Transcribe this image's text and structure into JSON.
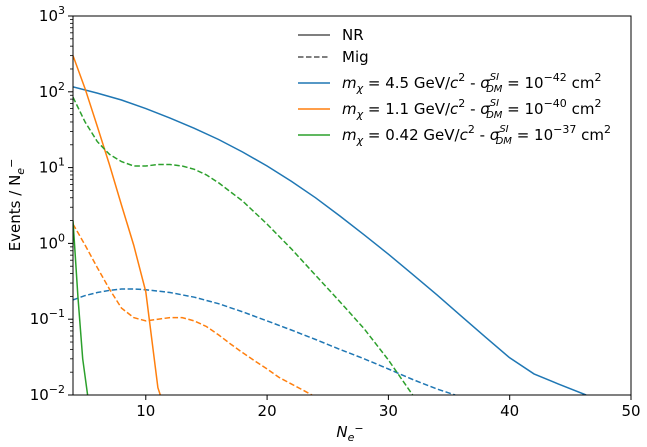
{
  "chart_data": {
    "type": "line",
    "xlabel_main": "N",
    "xlabel_sub": "e",
    "xlabel_sup": "−",
    "ylabel_main": "Events / N",
    "ylabel_sub": "e",
    "ylabel_sup": "−",
    "xlim": [
      4,
      50
    ],
    "ylim": [
      0.01,
      1000
    ],
    "yscale": "log",
    "x_ticks": [
      {
        "value": 10,
        "label": "10"
      },
      {
        "value": 20,
        "label": "20"
      },
      {
        "value": 30,
        "label": "30"
      },
      {
        "value": 40,
        "label": "40"
      },
      {
        "value": 50,
        "label": "50"
      }
    ],
    "y_ticks": [
      {
        "value": 0.01,
        "base": "10",
        "exp": "−2"
      },
      {
        "value": 0.1,
        "base": "10",
        "exp": "−1"
      },
      {
        "value": 1,
        "base": "10",
        "exp": "0"
      },
      {
        "value": 10,
        "base": "10",
        "exp": "1"
      },
      {
        "value": 100,
        "base": "10",
        "exp": "2"
      },
      {
        "value": 1000,
        "base": "10",
        "exp": "3"
      }
    ],
    "legend_position": "top-right",
    "legend": {
      "style_entries": [
        {
          "label": "NR",
          "color": "#555555",
          "dash": "solid"
        },
        {
          "label": "Mig",
          "color": "#555555",
          "dash": "dashed"
        }
      ],
      "series_entries": [
        {
          "color": "#1f77b4",
          "mass": "4.5",
          "xsec_exp": "−42"
        },
        {
          "color": "#ff7f0e",
          "mass": "1.1",
          "xsec_exp": "−40"
        },
        {
          "color": "#2ca02c",
          "mass": "0.42",
          "xsec_exp": "−37"
        }
      ]
    },
    "series": [
      {
        "color": "#1f77b4",
        "dash": "solid",
        "x": [
          4,
          6,
          8,
          10,
          12,
          14,
          16,
          18,
          20,
          22,
          24,
          26,
          28,
          30,
          32,
          34,
          36,
          38,
          40,
          42,
          44,
          46.3
        ],
        "y": [
          116,
          96,
          78,
          60,
          45,
          33,
          23.5,
          16,
          10.5,
          6.6,
          4.0,
          2.3,
          1.3,
          0.72,
          0.39,
          0.21,
          0.11,
          0.058,
          0.031,
          0.019,
          0.014,
          0.01
        ]
      },
      {
        "color": "#1f77b4",
        "dash": "dashed",
        "x": [
          4,
          5,
          6,
          7,
          8,
          9,
          10,
          12,
          14,
          16,
          18,
          20,
          22,
          24,
          26,
          28,
          30,
          32,
          34,
          35.5
        ],
        "y": [
          0.18,
          0.205,
          0.225,
          0.24,
          0.25,
          0.25,
          0.245,
          0.225,
          0.195,
          0.16,
          0.125,
          0.095,
          0.072,
          0.054,
          0.04,
          0.03,
          0.022,
          0.016,
          0.012,
          0.01
        ]
      },
      {
        "color": "#ff7f0e",
        "dash": "solid",
        "x": [
          4,
          5,
          6,
          7,
          8,
          9,
          10,
          11,
          11.2
        ],
        "y": [
          300,
          110,
          35,
          11,
          3.2,
          0.95,
          0.23,
          0.0125,
          0.01
        ]
      },
      {
        "color": "#ff7f0e",
        "dash": "dashed",
        "x": [
          4,
          5,
          6,
          7,
          8,
          9,
          10,
          11,
          12,
          13,
          14,
          15,
          16,
          17,
          18,
          19,
          20,
          21,
          22,
          23,
          23.7
        ],
        "y": [
          1.8,
          0.95,
          0.48,
          0.25,
          0.14,
          0.105,
          0.095,
          0.1,
          0.105,
          0.105,
          0.095,
          0.08,
          0.062,
          0.047,
          0.036,
          0.028,
          0.022,
          0.017,
          0.014,
          0.0115,
          0.01
        ]
      },
      {
        "color": "#2ca02c",
        "dash": "solid",
        "x": [
          4,
          4.4,
          4.8,
          5.2
        ],
        "y": [
          2.0,
          0.2,
          0.03,
          0.01
        ]
      },
      {
        "color": "#2ca02c",
        "dash": "dashed",
        "x": [
          4,
          5,
          6,
          7,
          8,
          9,
          10,
          11,
          12,
          13,
          14,
          15,
          16,
          18,
          20,
          22,
          24,
          26,
          28,
          30,
          32
        ],
        "y": [
          85,
          40,
          22,
          15,
          12,
          10.5,
          10.5,
          11,
          11,
          10.5,
          9.5,
          8,
          6.3,
          3.6,
          1.8,
          0.85,
          0.38,
          0.17,
          0.075,
          0.029,
          0.01
        ]
      }
    ]
  }
}
